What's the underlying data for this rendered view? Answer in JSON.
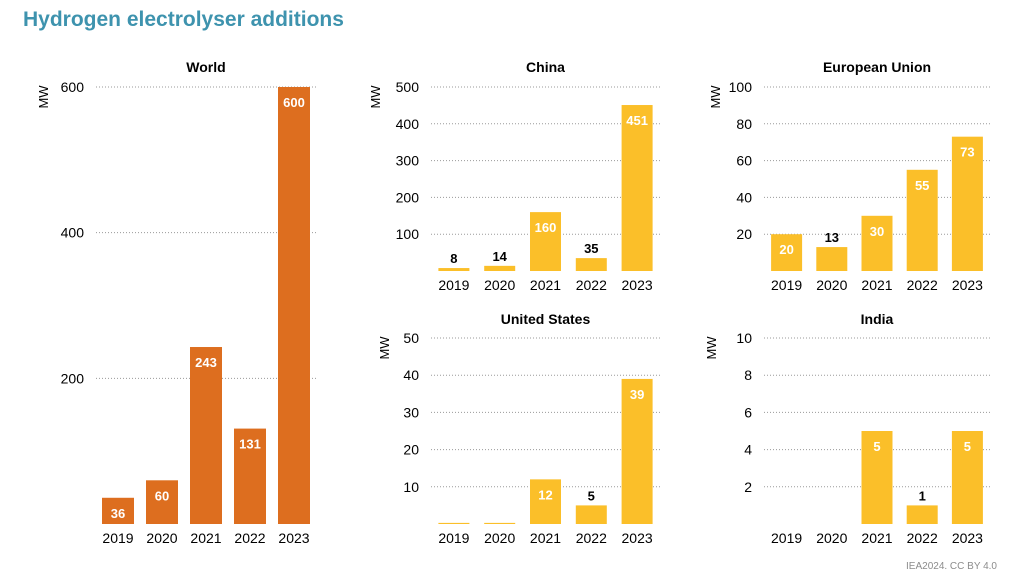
{
  "page": {
    "title": "Hydrogen electrolyser additions",
    "source": "IEA2024. CC BY 4.0"
  },
  "colors": {
    "title": "#3e93ae",
    "world": "#dd6e1f",
    "region": "#fbbf29",
    "gridline": "#9a9a9a"
  },
  "chart_data": [
    {
      "id": "world",
      "type": "bar",
      "title": "World",
      "ylabel": "MW",
      "categories": [
        "2019",
        "2020",
        "2021",
        "2022",
        "2023"
      ],
      "values": [
        36,
        60,
        243,
        131,
        600
      ],
      "value_labels": [
        "36",
        "60",
        "243",
        "131",
        "600"
      ],
      "ylim": [
        0,
        600
      ],
      "yticks": [
        200,
        400,
        600
      ],
      "grid": true
    },
    {
      "id": "china",
      "type": "bar",
      "title": "China",
      "ylabel": "MW",
      "categories": [
        "2019",
        "2020",
        "2021",
        "2022",
        "2023"
      ],
      "values": [
        8,
        14,
        160,
        35,
        451
      ],
      "value_labels": [
        "8",
        "14",
        "160",
        "35",
        "451"
      ],
      "ylim": [
        0,
        500
      ],
      "yticks": [
        100,
        200,
        300,
        400,
        500
      ],
      "grid": true
    },
    {
      "id": "eu",
      "type": "bar",
      "title": "European Union",
      "ylabel": "MW",
      "categories": [
        "2019",
        "2020",
        "2021",
        "2022",
        "2023"
      ],
      "values": [
        20,
        13,
        30,
        55,
        73
      ],
      "value_labels": [
        "20",
        "13",
        "30",
        "55",
        "73"
      ],
      "ylim": [
        0,
        100
      ],
      "yticks": [
        20,
        40,
        60,
        80,
        100
      ],
      "grid": true
    },
    {
      "id": "us",
      "type": "bar",
      "title": "United States",
      "ylabel": "MW",
      "categories": [
        "2019",
        "2020",
        "2021",
        "2022",
        "2023"
      ],
      "values": [
        0.3,
        0.3,
        12,
        5,
        39
      ],
      "value_labels": [
        "",
        "",
        "12",
        "5",
        "39"
      ],
      "ylim": [
        0,
        50
      ],
      "yticks": [
        10,
        20,
        30,
        40,
        50
      ],
      "grid": true
    },
    {
      "id": "india",
      "type": "bar",
      "title": "India",
      "ylabel": "MW",
      "categories": [
        "2019",
        "2020",
        "2021",
        "2022",
        "2023"
      ],
      "values": [
        0,
        0,
        5,
        1,
        5
      ],
      "value_labels": [
        "",
        "",
        "5",
        "1",
        "5"
      ],
      "ylim": [
        0,
        10
      ],
      "yticks": [
        2,
        4,
        6,
        8,
        10
      ],
      "grid": true
    }
  ]
}
